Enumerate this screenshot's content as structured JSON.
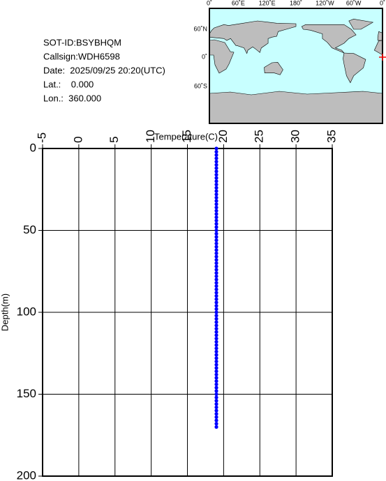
{
  "info": {
    "sot_id": "SOT-ID:BSYBHQM",
    "callsign": "Callsign:WDH6598",
    "date": "Date:  2025/09/25 20:20(UTC)",
    "lat": "Lat.:    0.000",
    "lon": "Lon.:  360.000"
  },
  "map": {
    "lon_labels": [
      "0˚",
      "60˚E",
      "120˚E",
      "180˚",
      "120˚W",
      "60˚W",
      "0˚"
    ],
    "lat_labels": [
      "60˚N",
      "0˚",
      "60˚S"
    ]
  },
  "chart_data": {
    "type": "scatter",
    "xlabel": "Temperature(C)",
    "ylabel": "Depth(m)",
    "xlim": [
      -5,
      35
    ],
    "xticks": [
      -5,
      0,
      5,
      10,
      15,
      20,
      25,
      30,
      35
    ],
    "ylim": [
      0,
      200
    ],
    "yticks": [
      0,
      50,
      100,
      150,
      200
    ],
    "y_inverted": true,
    "grid": true,
    "color": "#0000ff",
    "x": [
      19,
      19,
      19,
      19,
      19,
      19,
      19,
      19,
      19,
      19,
      19,
      19,
      19,
      19,
      19,
      19,
      19,
      19,
      19,
      19,
      19,
      19,
      19,
      19,
      19,
      19,
      19,
      19,
      19,
      19,
      19,
      19,
      19,
      19,
      19,
      19,
      19,
      19,
      19,
      19,
      19,
      19,
      19,
      19,
      19,
      19,
      19,
      19,
      19,
      19,
      19,
      19,
      19,
      19,
      19,
      19,
      19,
      19,
      19,
      19,
      19,
      19,
      19,
      19,
      19,
      19,
      19,
      19,
      19,
      19,
      19,
      19,
      19,
      19,
      19,
      19,
      19,
      19,
      19,
      19,
      19,
      19,
      19,
      19,
      19,
      19
    ],
    "values": [
      0,
      2,
      4,
      6,
      8,
      10,
      12,
      14,
      16,
      18,
      20,
      22,
      24,
      26,
      28,
      30,
      32,
      34,
      36,
      38,
      40,
      42,
      44,
      46,
      48,
      50,
      52,
      54,
      56,
      58,
      60,
      62,
      64,
      66,
      68,
      70,
      72,
      74,
      76,
      78,
      80,
      82,
      84,
      86,
      88,
      90,
      92,
      94,
      96,
      98,
      100,
      102,
      104,
      106,
      108,
      110,
      112,
      114,
      116,
      118,
      120,
      122,
      124,
      126,
      128,
      130,
      132,
      134,
      136,
      138,
      140,
      142,
      144,
      146,
      148,
      150,
      152,
      154,
      156,
      158,
      160,
      162,
      164,
      166,
      168,
      170
    ]
  }
}
